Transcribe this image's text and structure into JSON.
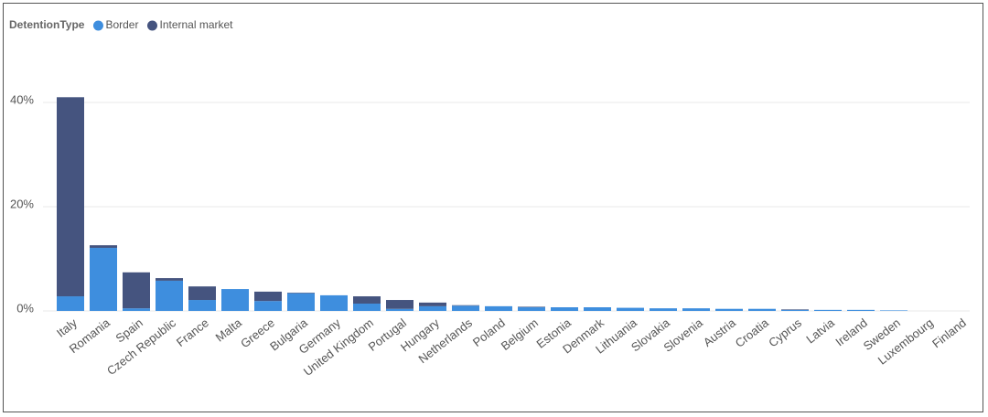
{
  "chart_data": {
    "type": "stacked-bar",
    "legend_title": "DetentionType",
    "categories": [
      "Italy",
      "Romania",
      "Spain",
      "Czech Republic",
      "France",
      "Malta",
      "Greece",
      "Bulgaria",
      "Germany",
      "United Kingdom",
      "Portugal",
      "Hungary",
      "Netherlands",
      "Poland",
      "Belgium",
      "Estonia",
      "Denmark",
      "Lithuania",
      "Slovakia",
      "Slovenia",
      "Austria",
      "Croatia",
      "Cyprus",
      "Latvia",
      "Ireland",
      "Sweden",
      "Luxembourg",
      "Finland"
    ],
    "series": [
      {
        "name": "Border",
        "color": "#3e8ede",
        "values": [
          2.8,
          12.1,
          0.5,
          5.8,
          2.1,
          4.2,
          1.9,
          3.4,
          3.0,
          1.4,
          0.4,
          0.9,
          1.0,
          0.9,
          0.7,
          0.7,
          0.7,
          0.6,
          0.5,
          0.5,
          0.4,
          0.4,
          0.2,
          0.2,
          0.2,
          0.1,
          0,
          0
        ]
      },
      {
        "name": "Internal market",
        "color": "#45547f",
        "values": [
          38.2,
          0.5,
          6.9,
          0.5,
          2.6,
          0,
          1.8,
          0.1,
          0,
          1.4,
          1.7,
          0.7,
          0.1,
          0,
          0.1,
          0,
          0,
          0,
          0,
          0,
          0,
          0,
          0.1,
          0,
          0,
          0,
          0,
          0
        ]
      }
    ],
    "ylim": [
      0,
      50
    ],
    "yticks": [
      {
        "value": 0,
        "label": "0%"
      },
      {
        "value": 20,
        "label": "20%"
      },
      {
        "value": 40,
        "label": "40%"
      }
    ],
    "grid": true
  }
}
